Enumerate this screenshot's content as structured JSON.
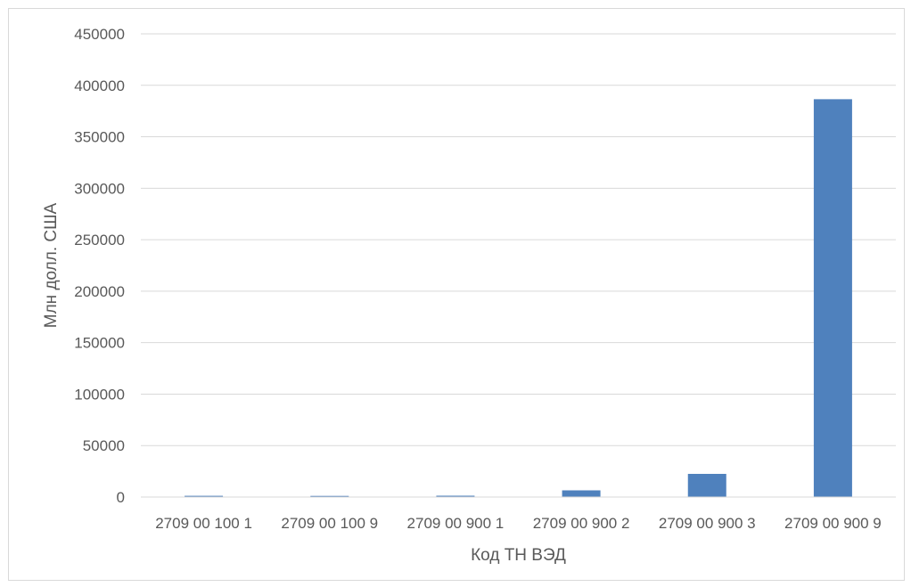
{
  "chart_data": {
    "type": "bar",
    "title": "",
    "xlabel": "Код ТН ВЭД",
    "ylabel": "Млн долл. США",
    "categories": [
      "2709 00 100 1",
      "2709 00 100 9",
      "2709 00 900 1",
      "2709 00 900 2",
      "2709 00 900 3",
      "2709 00 900 9"
    ],
    "values": [
      1200,
      1100,
      1300,
      6500,
      22500,
      386500
    ],
    "ylim": [
      0,
      450000
    ],
    "yticks": [
      0,
      50000,
      100000,
      150000,
      200000,
      250000,
      300000,
      350000,
      400000,
      450000
    ],
    "grid": true,
    "legend": "none",
    "colors": {
      "bar": "#4f81bd",
      "grid": "#d9d9d9",
      "text": "#595959"
    }
  }
}
